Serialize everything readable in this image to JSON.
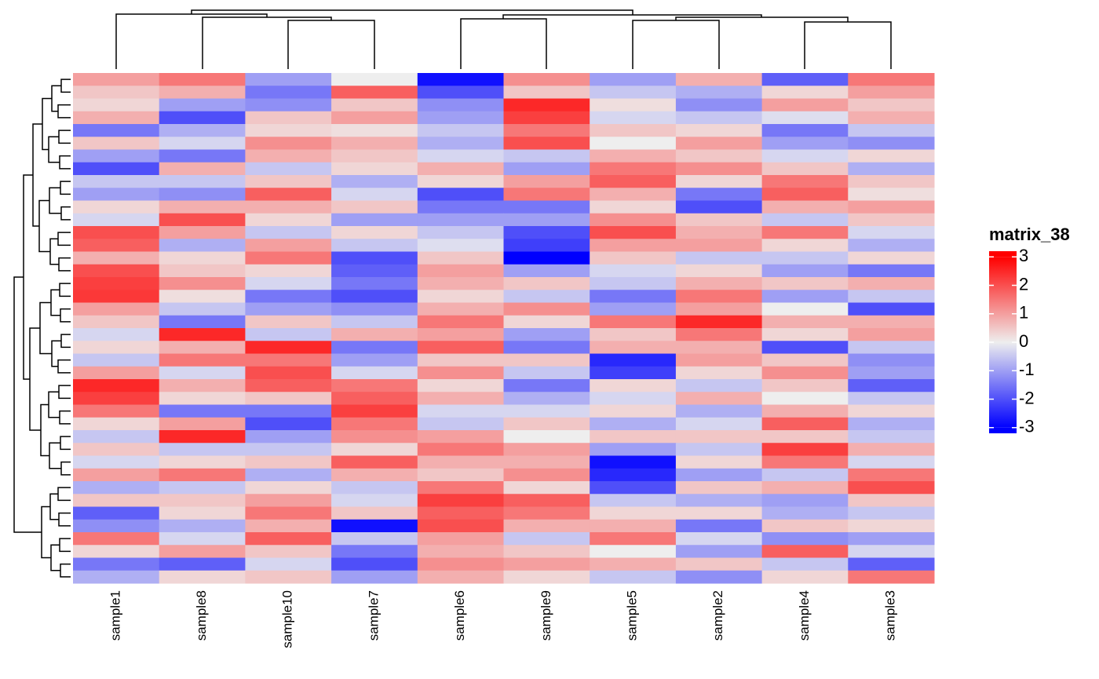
{
  "chart_data": {
    "type": "heatmap",
    "categories": [
      "sample1",
      "sample8",
      "sample10",
      "sample7",
      "sample6",
      "sample9",
      "sample5",
      "sample2",
      "sample4",
      "sample3"
    ],
    "values": [
      [
        1.0,
        1.5,
        -1.0,
        0.0,
        -2.8,
        1.2,
        -1.0,
        0.8,
        -1.8,
        1.5
      ],
      [
        0.5,
        0.8,
        -1.5,
        1.8,
        -2.0,
        0.5,
        -0.5,
        -0.8,
        0.3,
        1.0
      ],
      [
        0.3,
        -1.0,
        -1.2,
        0.5,
        -1.2,
        2.5,
        0.2,
        -1.2,
        1.0,
        0.5
      ],
      [
        0.8,
        -2.0,
        0.5,
        1.0,
        -1.0,
        2.2,
        -0.3,
        -0.5,
        -0.2,
        0.8
      ],
      [
        -1.5,
        -0.8,
        0.3,
        0.2,
        -0.5,
        1.5,
        0.5,
        0.3,
        -1.5,
        -0.5
      ],
      [
        0.5,
        -0.3,
        1.2,
        0.8,
        -0.8,
        2.0,
        0.0,
        1.0,
        -1.0,
        -1.2
      ],
      [
        -1.0,
        -1.5,
        0.8,
        0.5,
        -0.3,
        -0.5,
        0.8,
        0.5,
        -0.3,
        0.3
      ],
      [
        -2.0,
        0.8,
        -0.5,
        0.3,
        0.8,
        -1.0,
        1.5,
        1.2,
        0.5,
        -0.8
      ],
      [
        -0.5,
        -0.5,
        0.5,
        -0.8,
        0.3,
        1.0,
        1.8,
        0.3,
        1.5,
        0.5
      ],
      [
        -1.0,
        -1.2,
        1.8,
        -0.3,
        -2.0,
        1.5,
        0.8,
        -1.5,
        1.8,
        0.2
      ],
      [
        0.3,
        0.8,
        0.8,
        0.5,
        -1.5,
        -1.5,
        0.3,
        -2.0,
        0.8,
        1.0
      ],
      [
        -0.3,
        2.0,
        0.3,
        -1.0,
        -1.0,
        -1.0,
        1.2,
        0.5,
        -0.5,
        0.5
      ],
      [
        2.0,
        1.0,
        -0.5,
        0.3,
        -0.5,
        -2.0,
        2.0,
        0.8,
        1.5,
        -0.3
      ],
      [
        1.8,
        -0.8,
        1.0,
        -0.5,
        -0.2,
        -2.2,
        1.0,
        1.0,
        0.3,
        -0.8
      ],
      [
        0.8,
        0.3,
        1.5,
        -2.0,
        0.5,
        -3.0,
        0.5,
        -0.5,
        -0.5,
        0.3
      ],
      [
        2.0,
        0.5,
        0.3,
        -1.8,
        1.0,
        -1.0,
        -0.3,
        0.3,
        -1.0,
        -1.5
      ],
      [
        2.2,
        1.2,
        -0.3,
        -1.5,
        0.8,
        0.5,
        -0.5,
        0.8,
        0.5,
        0.8
      ],
      [
        2.3,
        0.2,
        -1.5,
        -2.0,
        0.3,
        -0.5,
        -1.5,
        1.5,
        -1.0,
        -0.5
      ],
      [
        1.0,
        -0.5,
        -1.0,
        -1.2,
        0.8,
        1.2,
        -1.0,
        1.0,
        0.0,
        -2.0
      ],
      [
        0.5,
        -1.5,
        0.5,
        -0.5,
        1.5,
        0.3,
        1.5,
        2.5,
        0.8,
        0.8
      ],
      [
        -0.3,
        2.5,
        -0.5,
        0.8,
        1.0,
        -1.0,
        0.5,
        1.5,
        0.3,
        1.0
      ],
      [
        0.3,
        0.8,
        2.5,
        -1.5,
        1.8,
        -1.5,
        0.8,
        0.8,
        -2.0,
        -0.5
      ],
      [
        -0.5,
        1.5,
        1.5,
        -1.0,
        0.5,
        0.5,
        -2.5,
        1.0,
        0.5,
        -1.2
      ],
      [
        1.0,
        -0.3,
        2.0,
        -0.3,
        1.2,
        -0.5,
        -2.2,
        0.3,
        1.2,
        -1.0
      ],
      [
        2.5,
        0.8,
        1.8,
        1.5,
        0.3,
        -1.5,
        0.3,
        -0.5,
        0.5,
        -1.8
      ],
      [
        2.2,
        0.3,
        0.5,
        1.8,
        0.8,
        -0.8,
        -0.3,
        0.8,
        0.0,
        -0.5
      ],
      [
        1.5,
        -1.5,
        -1.5,
        2.2,
        -0.3,
        -0.3,
        0.3,
        -0.8,
        0.8,
        0.3
      ],
      [
        0.3,
        1.0,
        -2.0,
        1.5,
        -0.5,
        0.5,
        -0.8,
        -0.3,
        1.8,
        -0.8
      ],
      [
        -0.5,
        2.5,
        -1.0,
        1.2,
        1.0,
        0.0,
        0.5,
        0.5,
        0.5,
        -0.5
      ],
      [
        0.5,
        -0.5,
        -0.5,
        0.3,
        1.5,
        1.0,
        -1.0,
        -0.5,
        2.2,
        0.8
      ],
      [
        -0.3,
        0.3,
        0.5,
        1.8,
        0.8,
        0.8,
        -2.8,
        0.3,
        1.5,
        -0.3
      ],
      [
        1.0,
        1.5,
        -0.8,
        0.8,
        0.5,
        1.2,
        -2.5,
        -1.0,
        -0.5,
        1.5
      ],
      [
        -0.8,
        -0.5,
        0.3,
        -0.5,
        1.5,
        0.3,
        -2.0,
        0.5,
        0.8,
        2.0
      ],
      [
        0.5,
        0.5,
        1.0,
        -0.3,
        2.2,
        1.8,
        -0.5,
        -0.8,
        -1.0,
        0.5
      ],
      [
        -1.8,
        0.3,
        1.5,
        0.5,
        1.8,
        1.5,
        0.3,
        0.3,
        -0.8,
        -0.5
      ],
      [
        -1.2,
        -0.8,
        0.8,
        -2.8,
        2.0,
        0.8,
        0.8,
        -1.5,
        0.5,
        0.3
      ],
      [
        1.5,
        -0.3,
        1.8,
        -0.5,
        1.0,
        -0.5,
        1.5,
        -0.3,
        -1.2,
        -1.0
      ],
      [
        0.3,
        1.0,
        0.5,
        -1.5,
        0.8,
        0.5,
        0.0,
        -1.0,
        1.8,
        -0.3
      ],
      [
        -1.5,
        -1.8,
        -0.3,
        -2.0,
        1.2,
        1.0,
        0.8,
        0.5,
        -0.5,
        -1.8
      ],
      [
        -0.8,
        0.3,
        0.5,
        -1.0,
        0.8,
        0.3,
        -0.5,
        -1.2,
        0.3,
        1.5
      ]
    ],
    "legend_title": "matrix_38",
    "colors": {
      "low": "#0000ff",
      "mid": "#eeeeee",
      "high": "#ff0000"
    },
    "clim": [
      -3,
      3
    ],
    "ylim": [
      -3.2,
      3.2
    ],
    "yticks": [
      -3,
      -2,
      -1,
      0,
      1,
      2,
      3
    ]
  }
}
